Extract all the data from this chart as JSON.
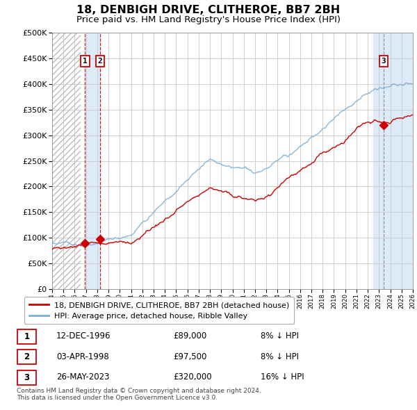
{
  "title": "18, DENBIGH DRIVE, CLITHEROE, BB7 2BH",
  "subtitle": "Price paid vs. HM Land Registry's House Price Index (HPI)",
  "title_fontsize": 11.5,
  "subtitle_fontsize": 9.5,
  "ylim": [
    0,
    500000
  ],
  "yticks": [
    0,
    50000,
    100000,
    150000,
    200000,
    250000,
    300000,
    350000,
    400000,
    450000,
    500000
  ],
  "ytick_labels": [
    "£0",
    "£50K",
    "£100K",
    "£150K",
    "£200K",
    "£250K",
    "£300K",
    "£350K",
    "£400K",
    "£450K",
    "£500K"
  ],
  "hpi_color": "#7bafd4",
  "price_color": "#cc0000",
  "shaded_region_color": "#ddeaf7",
  "grid_color": "#c8c8c8",
  "transactions": [
    {
      "date_num": 1996.92,
      "price": 89000,
      "label": "1"
    },
    {
      "date_num": 1998.25,
      "price": 97500,
      "label": "2"
    },
    {
      "date_num": 2023.4,
      "price": 320000,
      "label": "3"
    }
  ],
  "legend_entries": [
    {
      "label": "18, DENBIGH DRIVE, CLITHEROE, BB7 2BH (detached house)",
      "color": "#cc0000"
    },
    {
      "label": "HPI: Average price, detached house, Ribble Valley",
      "color": "#7bafd4"
    }
  ],
  "table_rows": [
    {
      "num": "1",
      "date": "12-DEC-1996",
      "price": "£89,000",
      "note": "8% ↓ HPI"
    },
    {
      "num": "2",
      "date": "03-APR-1998",
      "price": "£97,500",
      "note": "8% ↓ HPI"
    },
    {
      "num": "3",
      "date": "26-MAY-2023",
      "price": "£320,000",
      "note": "16% ↓ HPI"
    }
  ],
  "footnote": "Contains HM Land Registry data © Crown copyright and database right 2024.\nThis data is licensed under the Open Government Licence v3.0."
}
